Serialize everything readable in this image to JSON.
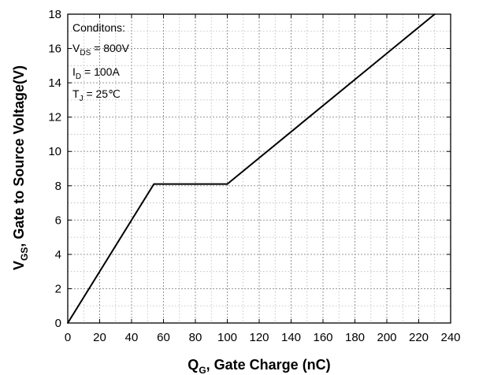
{
  "chart_data": {
    "type": "line",
    "title": "",
    "xlabel": {
      "main": "Q",
      "sub": "G",
      "rest": ", Gate Charge (nC)"
    },
    "ylabel": {
      "main": "V",
      "sub": "GS",
      "rest": ", Gate to Source Voltage(V)"
    },
    "xlim": [
      0,
      240
    ],
    "ylim": [
      0,
      18
    ],
    "x_ticks": [
      0,
      20,
      40,
      60,
      80,
      100,
      120,
      140,
      160,
      180,
      200,
      220,
      240
    ],
    "y_ticks": [
      0,
      2,
      4,
      6,
      8,
      10,
      12,
      14,
      16,
      18
    ],
    "grid": "dotted, major and minor",
    "series": [
      {
        "color": "#000000",
        "points": [
          [
            0,
            0
          ],
          [
            54,
            8.1
          ],
          [
            100,
            8.1
          ],
          [
            230,
            18
          ]
        ]
      }
    ],
    "annotation": {
      "lines": [
        {
          "main": "Conditons:"
        },
        {
          "main": "V",
          "sub": "DS",
          "rest": " = 800V"
        },
        {
          "main": "I",
          "sub": "D",
          "rest": " = 100A"
        },
        {
          "main": "T",
          "sub": "J",
          "rest": " = 25℃"
        }
      ]
    }
  }
}
